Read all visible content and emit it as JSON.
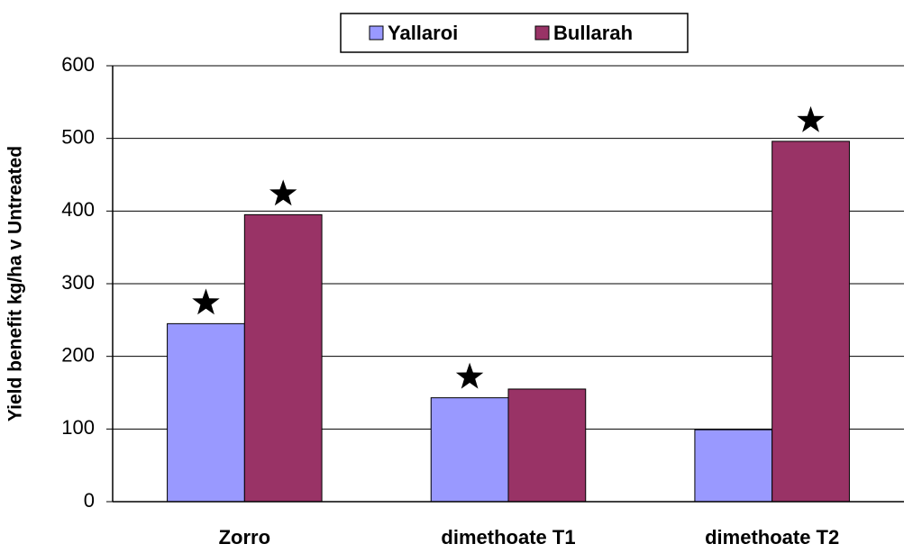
{
  "chart_data": {
    "type": "bar",
    "y_label": "Yield benefit kg/ha v Untreated",
    "categories": [
      "Zorro",
      "dimethoate T1",
      "dimethoate T2"
    ],
    "series": [
      {
        "name": "Yallaroi",
        "color": "#9999ff",
        "values": [
          245,
          143,
          99
        ],
        "significant": [
          true,
          true,
          false
        ]
      },
      {
        "name": "Bullarah",
        "color": "#993366",
        "values": [
          395,
          155,
          496
        ],
        "significant": [
          true,
          false,
          true
        ]
      }
    ],
    "ylim": [
      0,
      600
    ],
    "yticks": [
      0,
      100,
      200,
      300,
      400,
      500,
      600
    ],
    "grid": true,
    "legend": "top"
  }
}
